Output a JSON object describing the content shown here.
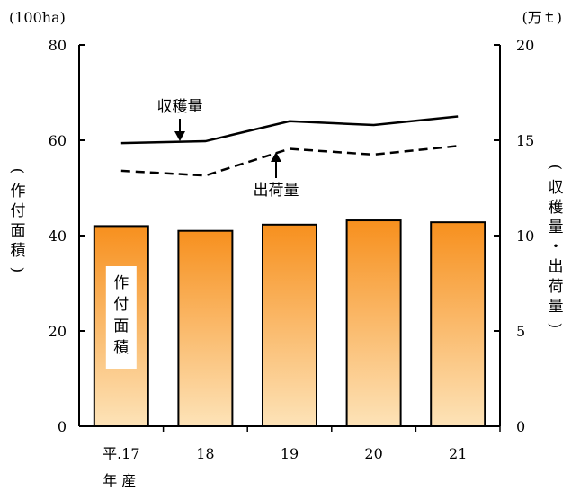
{
  "chart_data": {
    "type": "bar",
    "categories": [
      "平.17",
      "18",
      "19",
      "20",
      "21"
    ],
    "x_extra_label": "年 産",
    "left_axis": {
      "unit": "(100ha)",
      "label_chars": [
        "(",
        "作",
        "付",
        "面",
        "積",
        ")"
      ],
      "ylim": [
        0,
        80
      ],
      "ticks": [
        0,
        20,
        40,
        60,
        80
      ]
    },
    "right_axis": {
      "unit": "(万ｔ)",
      "label_chars": [
        "(",
        "収",
        "穫",
        "量",
        "・",
        "出",
        "荷",
        "量",
        ")"
      ],
      "ylim": [
        0,
        20
      ],
      "ticks": [
        0,
        5,
        10,
        15,
        20
      ]
    },
    "series": [
      {
        "name": "作付面積",
        "type": "bar",
        "axis": "left",
        "values": [
          42.0,
          41.0,
          42.3,
          43.2,
          42.8
        ]
      },
      {
        "name": "収穫量",
        "type": "line",
        "style": "solid",
        "axis": "right",
        "values": [
          14.85,
          14.95,
          16.0,
          15.8,
          16.25
        ]
      },
      {
        "name": "出荷量",
        "type": "line",
        "style": "dashed",
        "axis": "right",
        "values": [
          13.4,
          13.15,
          14.55,
          14.25,
          14.7
        ]
      }
    ],
    "bar_label_chars": [
      "作",
      "付",
      "面",
      "積"
    ],
    "annotations": {
      "harvest": "収穫量",
      "shipment": "出荷量"
    },
    "colors": {
      "bar_top": "#f7901e",
      "bar_bottom": "#fde3b8",
      "line": "#000000"
    }
  }
}
